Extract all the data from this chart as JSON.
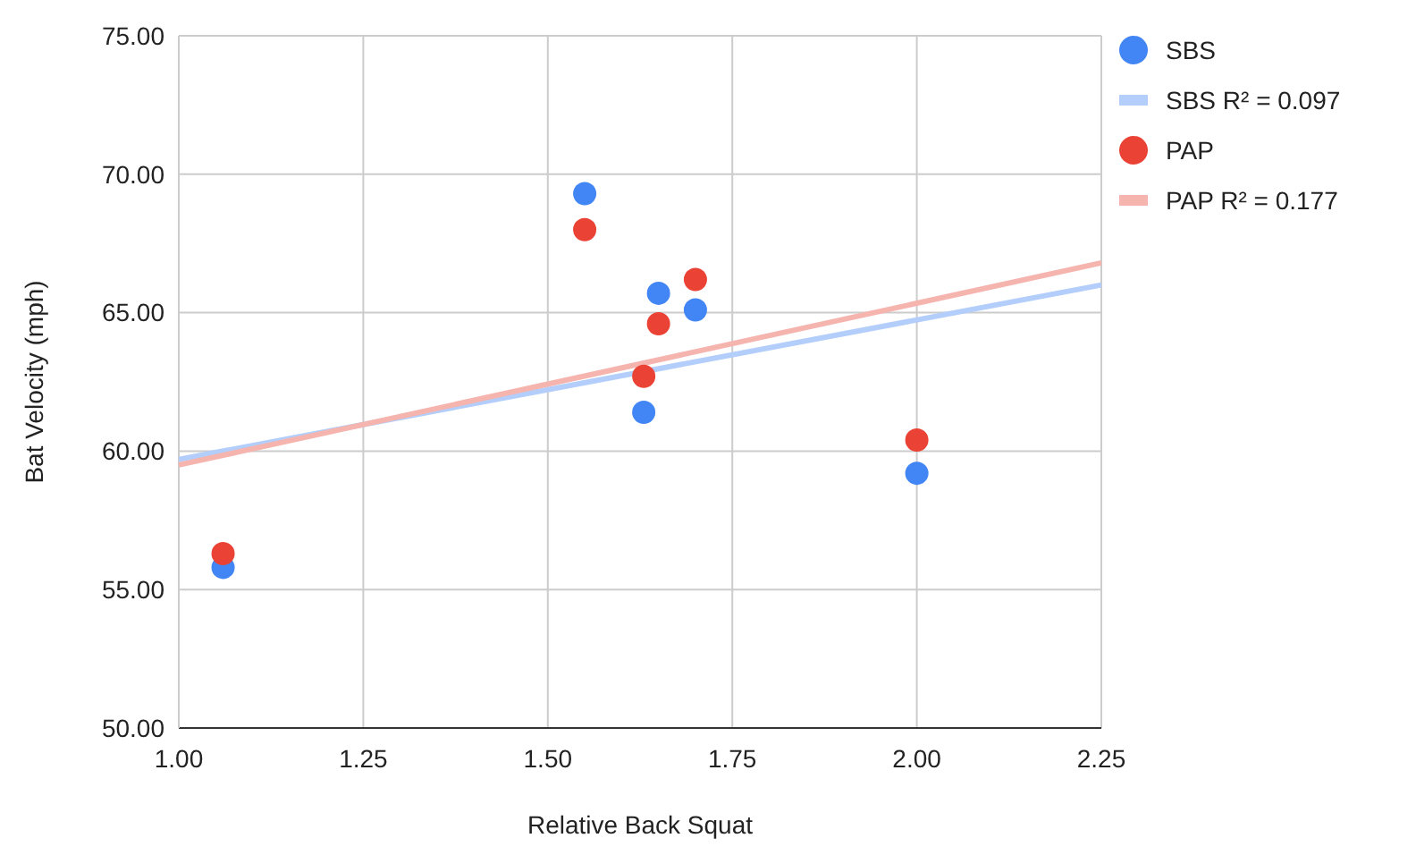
{
  "chart_data": {
    "type": "scatter",
    "xlabel": "Relative Back Squat",
    "ylabel": "Bat Velocity (mph)",
    "xlim": [
      1,
      2.25
    ],
    "xticks": [
      {
        "value": 1,
        "label": "1.00"
      },
      {
        "value": 1.25,
        "label": "1.25"
      },
      {
        "value": 1.5,
        "label": "1.50"
      },
      {
        "value": 1.75,
        "label": "1.75"
      },
      {
        "value": 2,
        "label": "2.00"
      },
      {
        "value": 2.25,
        "label": "2.25"
      }
    ],
    "ylim": [
      50,
      75
    ],
    "yticks": [
      {
        "value": 50,
        "label": "50.00"
      },
      {
        "value": 55,
        "label": "55.00"
      },
      {
        "value": 60,
        "label": "60.00"
      },
      {
        "value": 65,
        "label": "65.00"
      },
      {
        "value": 70,
        "label": "70.00"
      },
      {
        "value": 75,
        "label": "75.00"
      }
    ],
    "grid": true,
    "legend": "right",
    "marker": "circle",
    "series": [
      {
        "name": "SBS",
        "color": "#4285f4",
        "x": [
          1.06,
          1.55,
          1.63,
          1.65,
          1.7,
          2.0
        ],
        "values": [
          55.8,
          69.3,
          61.4,
          65.7,
          65.1,
          59.2
        ]
      },
      {
        "name": "SBS R² = 0.097",
        "type": "line",
        "marker": "none",
        "color": "#b3cefb",
        "x": [
          1,
          2.25
        ],
        "values": [
          59.7,
          66.0
        ]
      },
      {
        "name": "PAP",
        "color": "#ea4335",
        "x": [
          1.06,
          1.55,
          1.63,
          1.65,
          1.7,
          2.0
        ],
        "values": [
          56.3,
          68.0,
          62.7,
          64.6,
          66.2,
          60.4
        ]
      },
      {
        "name": "PAP R² = 0.177",
        "type": "line",
        "marker": "none",
        "color": "#f5b4ae",
        "x": [
          1,
          2.25
        ],
        "values": [
          59.5,
          66.8
        ]
      }
    ]
  }
}
